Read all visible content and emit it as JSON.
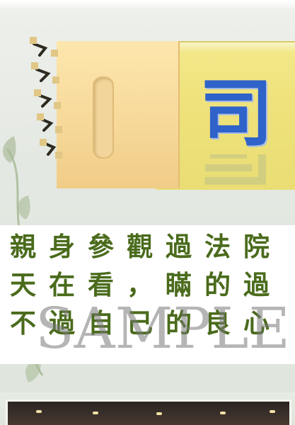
{
  "banner": {
    "title_char": "司",
    "title_color": "#2f63c9",
    "tag_color": "#f7d99a",
    "strip_color": "#efe27c"
  },
  "caption": {
    "line_1": "親身參觀過法院",
    "line_2": "天在看，瞞的過",
    "line_3": "不過自己的良心",
    "text_color": "#4a6b1c"
  },
  "watermark": {
    "text": "SAMPLE"
  },
  "decor": {
    "vine_color": "#8fa47c",
    "photo_frame": "#f5f5f0"
  }
}
